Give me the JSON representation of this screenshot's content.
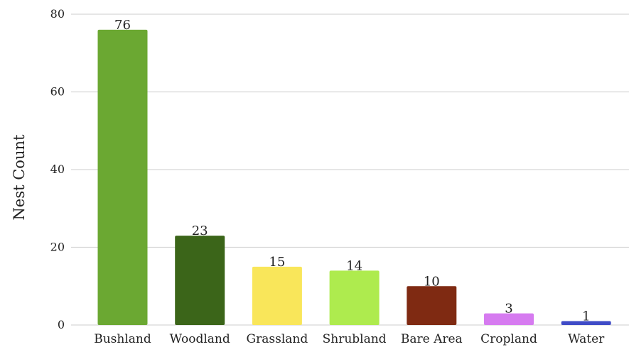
{
  "chart_data": {
    "type": "bar",
    "title": "",
    "xlabel": "",
    "ylabel": "Nest Count",
    "ylim": [
      0,
      80
    ],
    "yticks": [
      0,
      20,
      40,
      60,
      80
    ],
    "grid": true,
    "legend": "none",
    "categories": [
      "Bushland",
      "Woodland",
      "Grassland",
      "Shrubland",
      "Bare Area",
      "Cropland",
      "Water"
    ],
    "values": [
      76,
      23,
      15,
      14,
      10,
      3,
      1
    ],
    "colors": [
      "#6BA832",
      "#3B6519",
      "#F9E65A",
      "#AEEB4E",
      "#7F2A12",
      "#D67BF0",
      "#3F4BC6"
    ],
    "gridline_color": "#D6D6D6"
  }
}
